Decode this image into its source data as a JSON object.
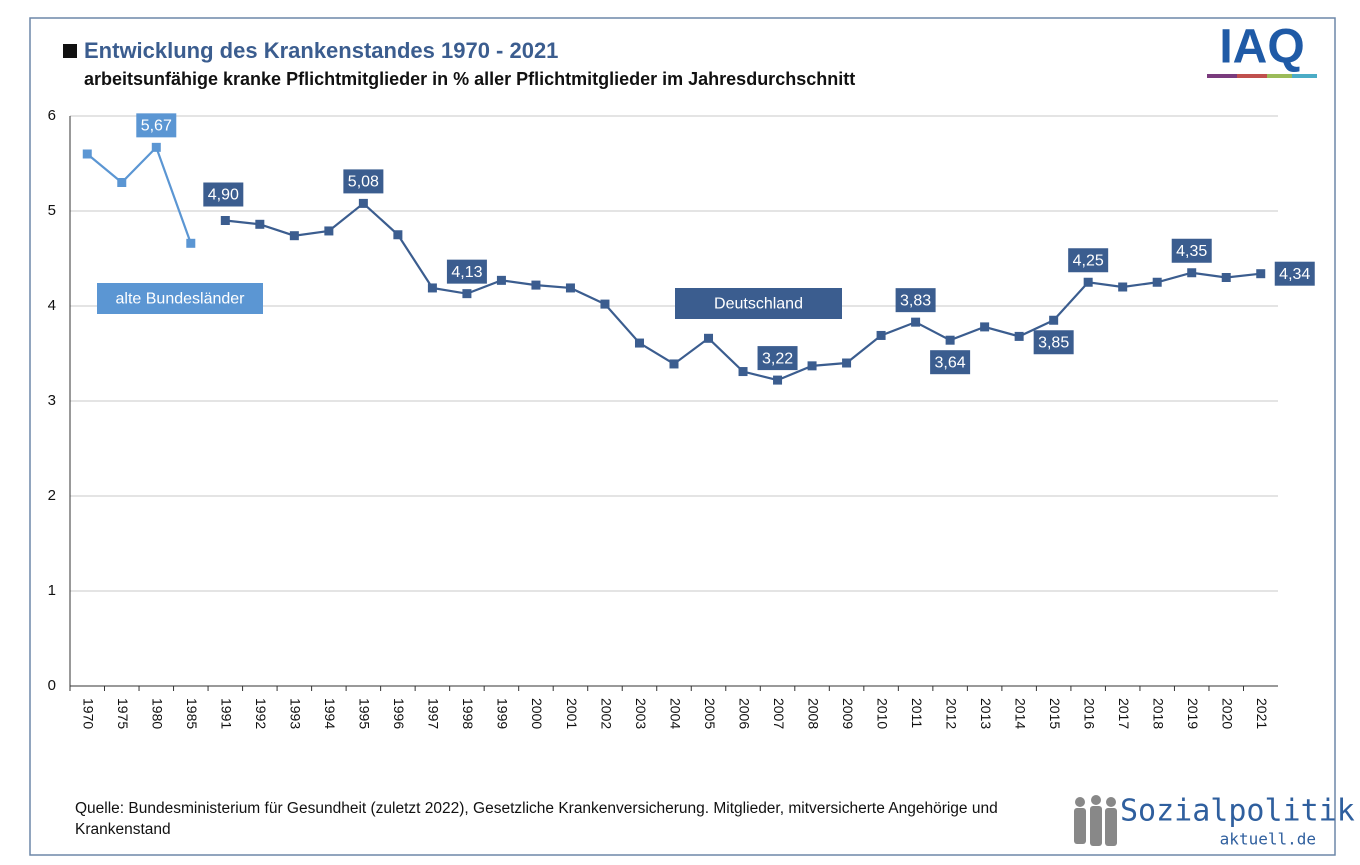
{
  "chart_data": {
    "type": "line",
    "title": "Entwicklung des Krankenstandes 1970 - 2021",
    "subtitle": "arbeitsunfähige kranke Pflichtmitglieder in % aller Pflichtmitglieder im Jahresdurchschnitt",
    "categories": [
      "1970",
      "1975",
      "1980",
      "1985",
      "1991",
      "1992",
      "1993",
      "1994",
      "1995",
      "1996",
      "1997",
      "1998",
      "1999",
      "2000",
      "2001",
      "2002",
      "2003",
      "2004",
      "2005",
      "2006",
      "2007",
      "2008",
      "2009",
      "2010",
      "2011",
      "2012",
      "2013",
      "2014",
      "2015",
      "2016",
      "2017",
      "2018",
      "2019",
      "2020",
      "2021"
    ],
    "series": [
      {
        "name": "alte Bundesländer",
        "color": "#5b96d3",
        "values": [
          5.6,
          5.3,
          5.67,
          4.66,
          null,
          null,
          null,
          null,
          null,
          null,
          null,
          null,
          null,
          null,
          null,
          null,
          null,
          null,
          null,
          null,
          null,
          null,
          null,
          null,
          null,
          null,
          null,
          null,
          null,
          null,
          null,
          null,
          null,
          null,
          null
        ],
        "value_labels": [
          null,
          null,
          "5,67",
          null,
          null,
          null,
          null,
          null,
          null,
          null,
          null,
          null,
          null,
          null,
          null,
          null,
          null,
          null,
          null,
          null,
          null,
          null,
          null,
          null,
          null,
          null,
          null,
          null,
          null,
          null,
          null,
          null,
          null,
          null,
          null
        ]
      },
      {
        "name": "Deutschland",
        "color": "#3b5d8f",
        "values": [
          null,
          null,
          null,
          null,
          4.9,
          4.86,
          4.74,
          4.79,
          5.08,
          4.75,
          4.19,
          4.13,
          4.27,
          4.22,
          4.19,
          4.02,
          3.61,
          3.39,
          3.66,
          3.31,
          3.22,
          3.37,
          3.4,
          3.69,
          3.83,
          3.64,
          3.78,
          3.68,
          3.85,
          4.25,
          4.2,
          4.25,
          4.35,
          4.3,
          4.34
        ],
        "value_labels": [
          null,
          null,
          null,
          null,
          "4,90",
          null,
          null,
          null,
          "5,08",
          null,
          null,
          "4,13",
          null,
          null,
          null,
          null,
          null,
          null,
          null,
          null,
          "3,22",
          null,
          null,
          null,
          "3,83",
          "3,64",
          null,
          null,
          "3,85",
          "4,25",
          null,
          null,
          "4,35",
          null,
          "4,34"
        ]
      }
    ],
    "ylim": [
      0,
      6
    ],
    "yticks": [
      0,
      1,
      2,
      3,
      4,
      5,
      6
    ],
    "grid": true,
    "source": "Quelle: Bundesministerium für Gesundheit (zuletzt 2022), Gesetzliche Krankenversicherung. Mitglieder, mitversicherte Angehörige und Krankenstand"
  },
  "logos": {
    "iaq": "IAQ",
    "sozialpolitik": "Sozialpolitik-",
    "domain": "aktuell.de"
  }
}
